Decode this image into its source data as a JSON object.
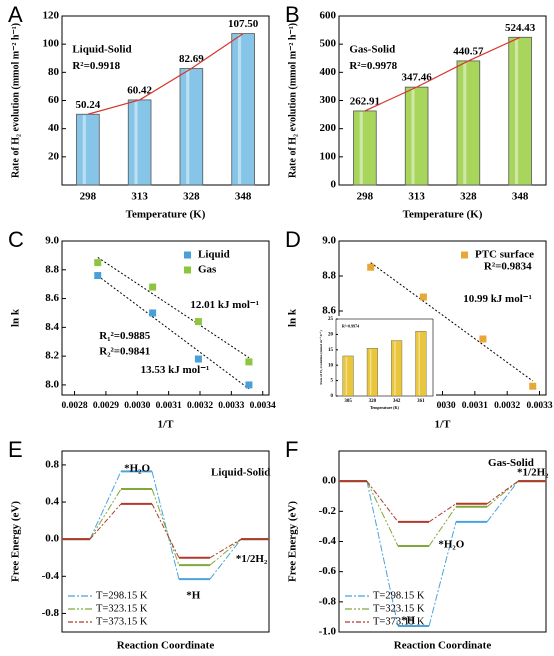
{
  "chart_data": [
    {
      "label": "A",
      "type": "bar",
      "xlabel": "Temperature (K)",
      "ylabel": "Rate of H₂ evolution (mmol m⁻² h⁻¹)",
      "categories": [
        "298",
        "313",
        "328",
        "348"
      ],
      "values": [
        50.24,
        60.42,
        82.69,
        107.5
      ],
      "value_labels": [
        "50.24",
        "60.42",
        "82.69",
        "107.50"
      ],
      "color": "#86c5e8",
      "fit_color": "#d9342b",
      "ylim": [
        0,
        120
      ],
      "yticks": [
        20,
        40,
        60,
        80,
        100,
        120
      ],
      "annotations": [
        {
          "text": "Liquid-Solid",
          "color": "#000000"
        },
        {
          "text": "R²=0.9918",
          "color": "#000000"
        }
      ]
    },
    {
      "label": "B",
      "type": "bar",
      "xlabel": "Temperature (K)",
      "ylabel": "Rate of H₂ evolution (mmol m⁻² h⁻¹)",
      "categories": [
        "298",
        "313",
        "328",
        "348"
      ],
      "values": [
        262.91,
        347.46,
        440.57,
        524.43
      ],
      "color": "#a8d65c",
      "fit_color": "#d9342b",
      "ylim": [
        0,
        600
      ],
      "yticks": [
        0,
        100,
        200,
        300,
        400,
        500,
        600
      ],
      "annotations": [
        {
          "text": "Gas-Solid",
          "color": "#000000"
        },
        {
          "text": "R²=0.9978",
          "color": "#000000"
        }
      ]
    },
    {
      "label": "C",
      "type": "scatter",
      "xlabel": "1/T",
      "ylabel": "ln k",
      "x": [
        0.002874,
        0.003049,
        0.003195,
        0.003356
      ],
      "series": [
        {
          "name": "Liquid",
          "color": "#4a9fd8",
          "values": [
            8.76,
            8.5,
            8.18,
            8.0
          ]
        },
        {
          "name": "Gas",
          "color": "#8cc63f",
          "values": [
            8.85,
            8.68,
            8.44,
            8.16
          ]
        }
      ],
      "xlim": [
        0.00276,
        0.00342
      ],
      "xticks": [
        0.0028,
        0.0029,
        {
          "value": 0.003,
          "label": "0.0030"
        },
        0.0031,
        0.0032,
        0.0033,
        0.0034
      ],
      "ylim": [
        7.93,
        9.0
      ],
      "yticks": [
        {
          "value": 8,
          "label": "8.0"
        },
        8.2,
        8.4,
        8.6,
        8.8,
        {
          "value": 9,
          "label": "9.0"
        }
      ],
      "legend": "upper right",
      "annotations": [
        {
          "text": "R₁²=0.9885",
          "color": "#000000"
        },
        {
          "text": "R₂²=0.9841",
          "color": "#000000"
        },
        {
          "text": "12.01 kJ mol⁻¹",
          "color": "#7cb342"
        },
        {
          "text": "13.53 kJ mol⁻¹",
          "color": "#4a9fd8"
        }
      ]
    },
    {
      "label": "D",
      "type": "scatter",
      "xlabel": "1/T",
      "ylabel": "ln k",
      "x": [
        0.002778,
        0.002941,
        0.003125,
        0.003279
      ],
      "series": [
        {
          "name": "PTC surface",
          "color": "#e8a838",
          "values": [
            8.85,
            8.68,
            8.44,
            8.17
          ]
        }
      ],
      "xlim": [
        0.00268,
        0.00332
      ],
      "xticks": [
        0.0027,
        0.0028,
        0.0029,
        {
          "value": 0.003,
          "label": "0.0030"
        },
        0.0031,
        0.0032,
        0.0033
      ],
      "ylim": [
        8.12,
        9.0
      ],
      "yticks": [
        8.2,
        8.4,
        8.6,
        8.8,
        {
          "value": 9,
          "label": "9.0"
        }
      ],
      "legend": "upper right",
      "annotations": [
        {
          "text": "R²=0.9834",
          "color": "#000000"
        },
        {
          "text": "10.99 kJ mol⁻¹",
          "color": "#e0a82e"
        }
      ]
    },
    {
      "label": "E",
      "type": "energy",
      "xlabel": "Reaction Coordinate",
      "ylabel": "Free Energy (eV)",
      "series": [
        {
          "name": "T=298.15 K",
          "color": "#4aa3df",
          "values": [
            0,
            0.73,
            -0.43,
            0
          ]
        },
        {
          "name": "T=323.15 K",
          "color": "#7fa83a",
          "values": [
            0,
            0.54,
            -0.28,
            0
          ]
        },
        {
          "name": "T=373.15 K",
          "color": "#b03a2e",
          "values": [
            0,
            0.38,
            -0.2,
            0
          ]
        }
      ],
      "ylim": [
        -1.0,
        0.95
      ],
      "yticks": [
        -0.8,
        -0.4,
        {
          "value": 0,
          "label": "0.0"
        },
        0.4,
        0.8
      ],
      "legend": "lower left",
      "annotations": [
        {
          "text": "*H₂O",
          "color": "#000000"
        },
        {
          "text": "*H",
          "color": "#000000"
        },
        {
          "text": "*1/2H₂",
          "color": "#000000"
        },
        {
          "text": "Liquid-Solid",
          "color": "#000000"
        }
      ]
    },
    {
      "label": "F",
      "type": "energy",
      "xlabel": "Reaction Coordinate",
      "ylabel": "Free Energy (eV)",
      "series": [
        {
          "name": "T=298.15 K",
          "color": "#4aa3df",
          "values": [
            0,
            -0.96,
            -0.27,
            0
          ]
        },
        {
          "name": "T=323.15 K",
          "color": "#7fa83a",
          "values": [
            0,
            -0.43,
            -0.17,
            0
          ]
        },
        {
          "name": "T=373.15 K",
          "color": "#b03a2e",
          "values": [
            0,
            -0.27,
            -0.15,
            0
          ]
        }
      ],
      "ylim": [
        -1.0,
        0.2
      ],
      "yticks": [
        {
          "value": -1,
          "label": "-1.0"
        },
        -0.8,
        -0.6,
        -0.4,
        -0.2,
        {
          "value": 0,
          "label": "0.0"
        }
      ],
      "legend": "lower left",
      "annotations": [
        {
          "text": "*H₂O",
          "color": "#000000"
        },
        {
          "text": "*H",
          "color": "#000000"
        },
        {
          "text": "*1/2H₂",
          "color": "#000000"
        },
        {
          "text": "Gas-Solid",
          "color": "#000000"
        }
      ]
    },
    {
      "type": "bar",
      "xlabel": "Temperature (K)",
      "ylabel": "Rate of H₂ evolution (mmol m⁻² h⁻¹)",
      "categories": [
        "305",
        "320",
        "342",
        "361"
      ],
      "values": [
        13,
        15.5,
        18,
        21
      ],
      "color": "#e9c63b",
      "ylim": [
        0,
        25
      ],
      "yticks": [
        0,
        5,
        10,
        15,
        20,
        25
      ],
      "annotations": [
        {
          "text": "R²=0.9974",
          "color": "#000000"
        }
      ]
    }
  ]
}
